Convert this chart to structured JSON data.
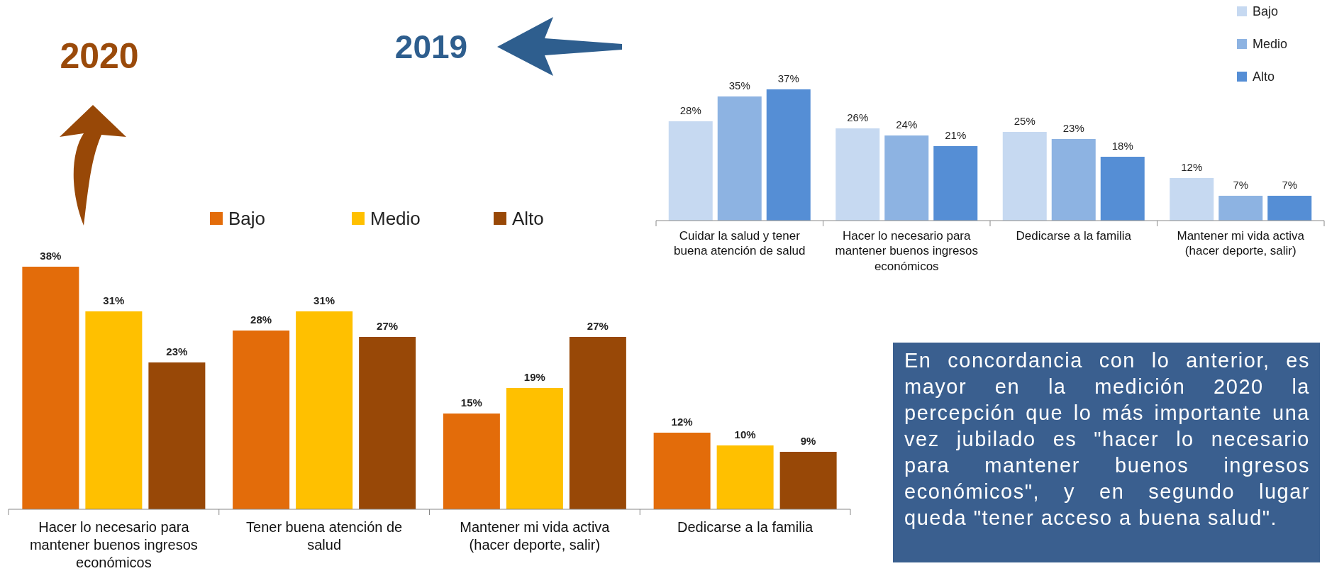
{
  "chart_data": [
    {
      "type": "bar",
      "annotations": [
        "2020"
      ],
      "categories": [
        "Hacer lo necesario para mantener buenos ingresos económicos",
        "Tener buena atención de salud",
        "Mantener mi vida activa (hacer deporte, salir)",
        "Dedicarse a la familia"
      ],
      "series": [
        {
          "name": "Bajo",
          "color": "#e36c0a",
          "values": [
            38,
            28,
            15,
            12
          ],
          "value_labels": [
            "38%",
            "28%",
            "15%",
            "12%"
          ]
        },
        {
          "name": "Medio",
          "color": "#ffc000",
          "values": [
            31,
            31,
            19,
            10
          ],
          "value_labels": [
            "31%",
            "31%",
            "19%",
            "10%"
          ]
        },
        {
          "name": "Alto",
          "color": "#984807",
          "values": [
            23,
            27,
            27,
            9
          ],
          "value_labels": [
            "23%",
            "27%",
            "27%",
            "9%"
          ]
        }
      ],
      "legend": "top",
      "tick_labels": "x",
      "grid": false
    },
    {
      "type": "bar",
      "title": "2019",
      "categories": [
        "Cuidar la salud y tener buena atención de salud",
        "Hacer lo necesario para mantener buenos ingresos económicos",
        "Dedicarse a la familia",
        "Mantener mi vida activa (hacer deporte, salir)"
      ],
      "series": [
        {
          "name": "Bajo",
          "color": "#c6d9f1",
          "values": [
            28,
            26,
            25,
            12
          ],
          "value_labels": [
            "28%",
            "26%",
            "25%",
            "12%"
          ]
        },
        {
          "name": "Medio",
          "color": "#8db3e2",
          "values": [
            35,
            24,
            23,
            7
          ],
          "value_labels": [
            "35%",
            "24%",
            "23%",
            "7%"
          ]
        },
        {
          "name": "Alto",
          "color": "#558ed5",
          "values": [
            37,
            21,
            18,
            7
          ],
          "value_labels": [
            "37%",
            "21%",
            "18%",
            "7%"
          ]
        }
      ],
      "legend": "top right",
      "tick_labels": "x",
      "grid": false,
      "annotations": [
        "En concordancia con lo anterior, es mayor en la medición 2020 la percepción que lo más importante una vez jubilado es \"hacer lo necesario para mantener buenos ingresos económicos\", y en segundo lugar queda \"tener acceso a buena salud\"."
      ]
    }
  ]
}
